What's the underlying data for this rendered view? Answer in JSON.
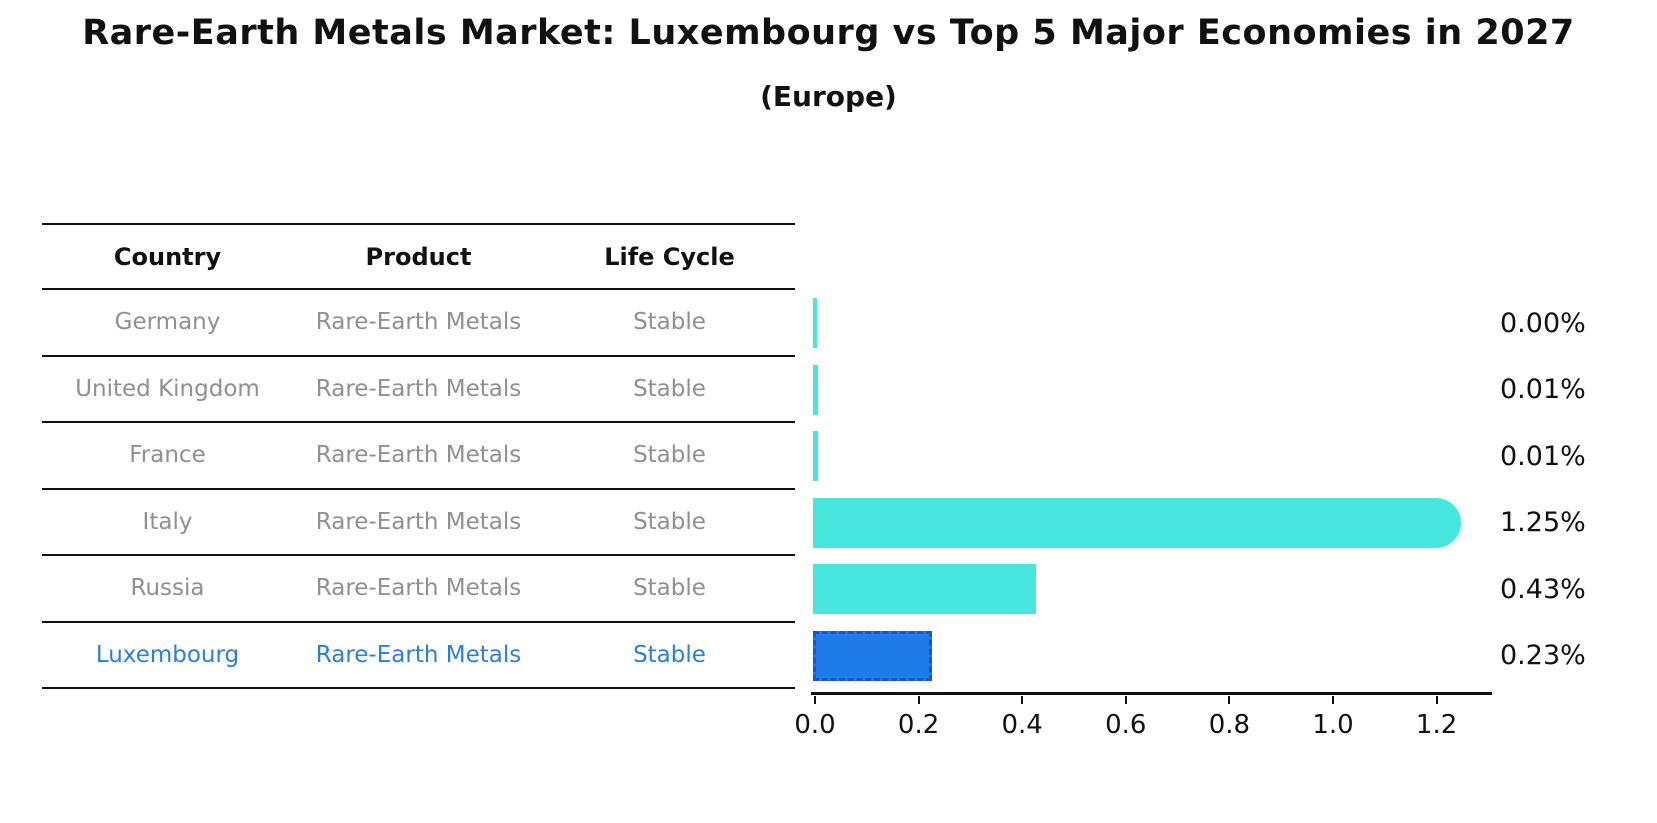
{
  "chart_data": {
    "type": "bar",
    "orientation": "horizontal",
    "title": "Rare-Earth Metals Market: Luxembourg vs Top 5 Major Economies in 2027",
    "subtitle": "(Europe)",
    "categories": [
      "Germany",
      "United Kingdom",
      "France",
      "Italy",
      "Russia",
      "Luxembourg"
    ],
    "values": [
      0.0,
      0.01,
      0.01,
      1.25,
      0.43,
      0.23
    ],
    "value_labels": [
      "0.00%",
      "0.01%",
      "0.01%",
      "1.25%",
      "0.43%",
      "0.23%"
    ],
    "xlabel": "",
    "ylabel": "",
    "xlim": [
      0,
      1.3
    ],
    "x_ticks": [
      "0.0",
      "0.2",
      "0.4",
      "0.6",
      "0.8",
      "1.0",
      "1.2"
    ],
    "x_tick_values": [
      0,
      0.2,
      0.4,
      0.6,
      0.8,
      1.0,
      1.2
    ],
    "grid": false,
    "legend": "none",
    "bar_color": "#47E6DF",
    "highlight_bar_color": "#1E7BE8",
    "highlight_border_color": "#2050d8",
    "highlight_index": 5
  },
  "table": {
    "headers": [
      "Country",
      "Product",
      "Life Cycle"
    ],
    "rows": [
      {
        "country": "Germany",
        "product": "Rare-Earth Metals",
        "life_cycle": "Stable",
        "highlight": false
      },
      {
        "country": "United Kingdom",
        "product": "Rare-Earth Metals",
        "life_cycle": "Stable",
        "highlight": false
      },
      {
        "country": "France",
        "product": "Rare-Earth Metals",
        "life_cycle": "Stable",
        "highlight": false
      },
      {
        "country": "Italy",
        "product": "Rare-Earth Metals",
        "life_cycle": "Stable",
        "highlight": false
      },
      {
        "country": "Russia",
        "product": "Rare-Earth Metals",
        "life_cycle": "Stable",
        "highlight": false
      },
      {
        "country": "Luxembourg",
        "product": "Rare-Earth Metals",
        "life_cycle": "Stable",
        "highlight": true
      }
    ]
  },
  "colors": {
    "row_text": "#909090",
    "highlight_text": "#2b7fd9",
    "header_text": "#111111",
    "axis": "#111111"
  }
}
